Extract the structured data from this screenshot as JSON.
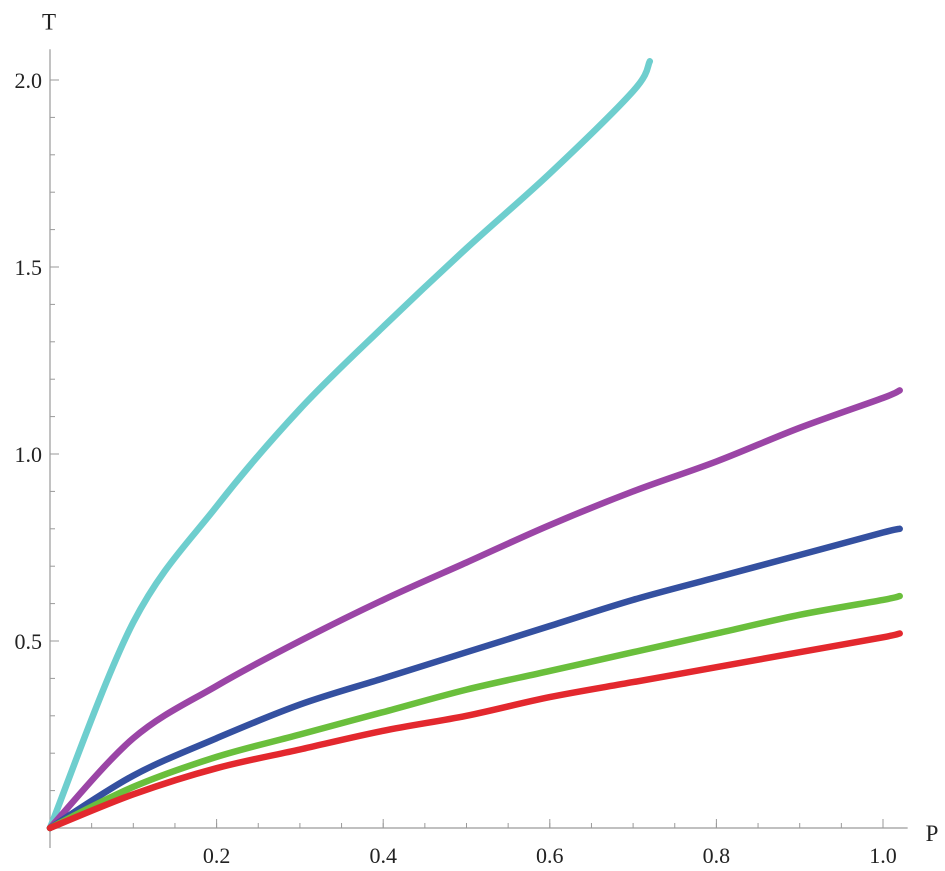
{
  "chart_data": {
    "type": "line",
    "xlabel": "P",
    "ylabel": "T",
    "xlim": [
      0,
      1.02
    ],
    "ylim": [
      0,
      2.05
    ],
    "x_major_ticks": [
      0.2,
      0.4,
      0.6,
      0.8,
      1.0
    ],
    "x_tick_labels": [
      "0.2",
      "0.4",
      "0.6",
      "0.8",
      "1.0"
    ],
    "x_minor_step": 0.05,
    "y_major_ticks": [
      0.5,
      1.0,
      1.5,
      2.0
    ],
    "y_tick_labels": [
      "0.5",
      "1.0",
      "1.5",
      "2.0"
    ],
    "y_minor_step": 0.1,
    "grid": false,
    "legend": "none",
    "x": [
      0,
      0.1,
      0.2,
      0.3,
      0.4,
      0.5,
      0.6,
      0.7,
      0.8,
      0.9,
      1.0,
      1.02
    ],
    "series": [
      {
        "color": "#6ecece",
        "values": [
          0,
          0.55,
          0.86,
          1.12,
          1.34,
          1.55,
          1.75,
          1.97,
          null,
          null,
          null,
          null
        ],
        "x_end": 0.72,
        "y_end": 2.05
      },
      {
        "color": "#9b45a6",
        "values": [
          0,
          0.24,
          0.38,
          0.5,
          0.61,
          0.71,
          0.81,
          0.9,
          0.98,
          1.07,
          1.15,
          1.17
        ]
      },
      {
        "color": "#3450a0",
        "values": [
          0,
          0.14,
          0.24,
          0.33,
          0.4,
          0.47,
          0.54,
          0.61,
          0.67,
          0.73,
          0.79,
          0.8
        ]
      },
      {
        "color": "#6abf3c",
        "values": [
          0,
          0.11,
          0.19,
          0.25,
          0.31,
          0.37,
          0.42,
          0.47,
          0.52,
          0.57,
          0.61,
          0.62
        ]
      },
      {
        "color": "#e3282e",
        "values": [
          0,
          0.09,
          0.16,
          0.21,
          0.26,
          0.3,
          0.35,
          0.39,
          0.43,
          0.47,
          0.51,
          0.52
        ]
      }
    ]
  }
}
